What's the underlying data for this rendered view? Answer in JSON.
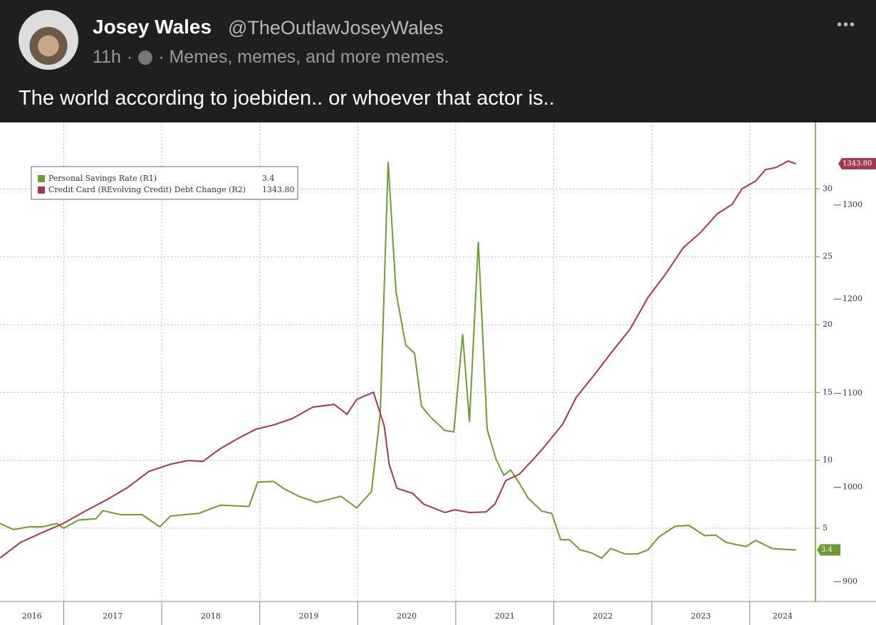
{
  "post": {
    "author": "Josey Wales",
    "handle": "@TheOutlawJoseyWales",
    "time": "11h",
    "separator": "·",
    "group": "· Memes, memes, and more memes.",
    "menu": "•••",
    "text": "The world according to joebiden.. or whoever that actor is.."
  },
  "chart_data": {
    "type": "line",
    "legend": "upper left",
    "grid": true,
    "xlim": [
      2016.35,
      2024.67
    ],
    "xticks": [
      2016,
      2017,
      2018,
      2019,
      2020,
      2021,
      2022,
      2023,
      2024
    ],
    "ylim": [
      -0.4,
      34.9
    ],
    "yticks": [
      5,
      10,
      15,
      20,
      25,
      30
    ],
    "y2lim": [
      878.8,
      1387.7
    ],
    "y2ticks": [
      900,
      1000,
      1100,
      1200,
      1300
    ],
    "series": [
      {
        "name": "Personal Savings Rate (R1)",
        "color": "#6f9a34",
        "axis": "y",
        "last_label": "3.4",
        "x": [
          2016.35,
          2016.49,
          2016.64,
          2016.78,
          2016.93,
          2017.0,
          2017.15,
          2017.33,
          2017.4,
          2017.58,
          2017.8,
          2017.98,
          2018.09,
          2018.38,
          2018.6,
          2018.89,
          2018.98,
          2019.14,
          2019.25,
          2019.4,
          2019.58,
          2019.83,
          2019.99,
          2020.14,
          2020.23,
          2020.31,
          2020.39,
          2020.49,
          2020.58,
          2020.65,
          2020.74,
          2020.89,
          2020.98,
          2021.07,
          2021.14,
          2021.23,
          2021.32,
          2021.41,
          2021.49,
          2021.56,
          2021.65,
          2021.74,
          2021.88,
          2021.98,
          2022.07,
          2022.16,
          2022.27,
          2022.38,
          2022.49,
          2022.58,
          2022.73,
          2022.85,
          2022.96,
          2023.07,
          2023.24,
          2023.38,
          2023.54,
          2023.65,
          2023.76,
          2023.96,
          2024.06,
          2024.23,
          2024.47
        ],
        "values": [
          5.35,
          4.9,
          5.1,
          5.1,
          5.35,
          5.0,
          5.6,
          5.7,
          6.3,
          6.0,
          6.0,
          5.1,
          5.9,
          6.1,
          6.7,
          6.6,
          8.4,
          8.45,
          7.9,
          7.35,
          6.9,
          7.35,
          6.5,
          7.7,
          13.5,
          32.0,
          22.4,
          18.5,
          17.9,
          14.0,
          13.2,
          12.2,
          12.1,
          19.3,
          12.85,
          26.1,
          12.3,
          10.1,
          8.9,
          9.3,
          8.3,
          7.2,
          6.25,
          6.1,
          4.15,
          4.15,
          3.4,
          3.2,
          2.8,
          3.5,
          3.1,
          3.1,
          3.4,
          4.35,
          5.15,
          5.2,
          4.45,
          4.5,
          3.95,
          3.65,
          4.1,
          3.5,
          3.4
        ]
      },
      {
        "name": "Credit Card (REvolving Credit) Debt Change (R2)",
        "color": "#a03a4e",
        "axis": "y2",
        "last_label": "1343.80",
        "x": [
          2016.35,
          2016.56,
          2016.78,
          2017.0,
          2017.22,
          2017.44,
          2017.65,
          2017.87,
          2018.09,
          2018.27,
          2018.42,
          2018.6,
          2018.78,
          2018.96,
          2019.14,
          2019.33,
          2019.54,
          2019.76,
          2019.89,
          2019.99,
          2020.16,
          2020.27,
          2020.32,
          2020.4,
          2020.56,
          2020.67,
          2020.89,
          2020.99,
          2021.14,
          2021.31,
          2021.4,
          2021.51,
          2021.65,
          2021.87,
          2022.09,
          2022.23,
          2022.41,
          2022.6,
          2022.78,
          2022.96,
          2023.14,
          2023.32,
          2023.5,
          2023.67,
          2023.82,
          2023.92,
          2024.06,
          2024.16,
          2024.27,
          2024.39,
          2024.47
        ],
        "values": [
          925,
          941.6,
          952,
          962,
          974.8,
          986.9,
          999.8,
          1017,
          1024.7,
          1028.5,
          1027.7,
          1041.3,
          1052,
          1061.8,
          1066.3,
          1073,
          1085.2,
          1088.2,
          1077.6,
          1093.5,
          1101,
          1065.5,
          1024.7,
          999,
          993.7,
          982.4,
          973.3,
          976.3,
          973.3,
          974,
          982.4,
          1007.3,
          1014.1,
          1039,
          1067,
          1095.8,
          1119.2,
          1144.9,
          1168.3,
          1201.6,
          1226.5,
          1254.5,
          1271.1,
          1290.8,
          1300.6,
          1317.2,
          1325.5,
          1337.6,
          1339.9,
          1346.7,
          1343.8
        ]
      }
    ]
  }
}
